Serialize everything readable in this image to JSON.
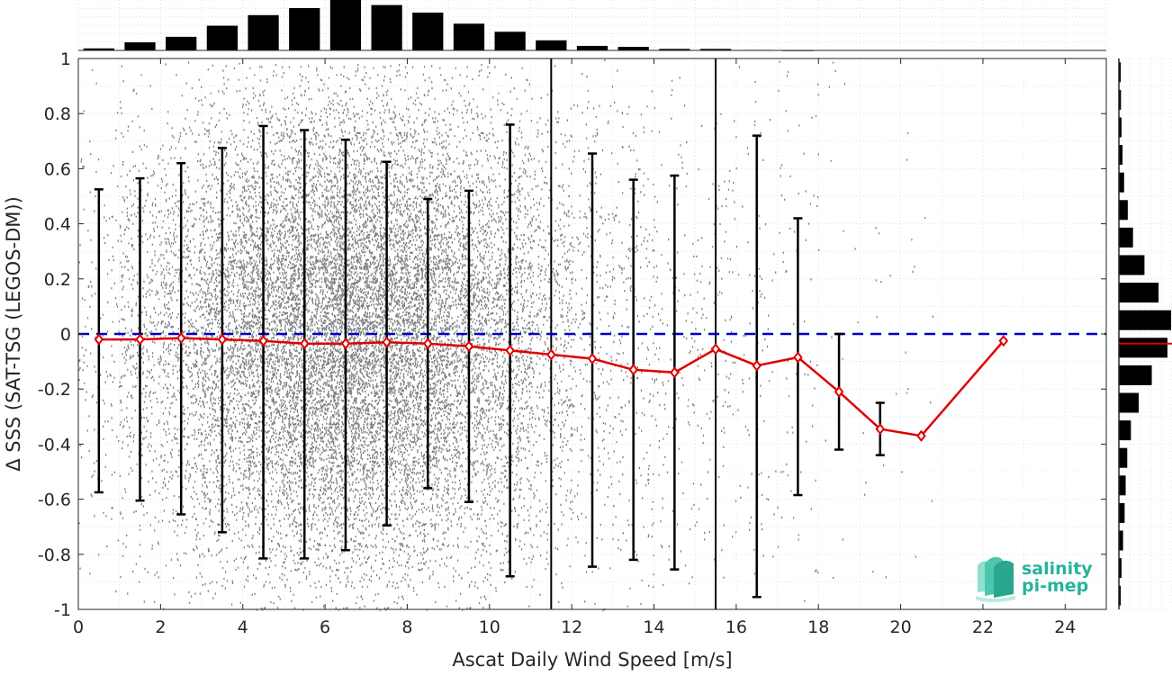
{
  "chart_data": {
    "type": "scatter",
    "xlabel": "Ascat Daily Wind Speed [m/s]",
    "ylabel": "Δ SSS (SAT-TSG (LEGOS-DM))",
    "xlim": [
      0,
      25
    ],
    "ylim": [
      -1,
      1
    ],
    "xticks": [
      "0",
      "2",
      "4",
      "6",
      "8",
      "10",
      "12",
      "14",
      "16",
      "18",
      "20",
      "22",
      "24"
    ],
    "yticks": [
      "-1",
      "-0.8",
      "-0.6",
      "-0.4",
      "-0.2",
      "0",
      "0.2",
      "0.4",
      "0.6",
      "0.8",
      "1"
    ],
    "grid": true,
    "scatter_color": "#808080",
    "mean_color": "#e00000",
    "errorbar_color": "#000000",
    "zero_line_color": "#0000cc",
    "bins": {
      "x": [
        0.5,
        1.5,
        2.5,
        3.5,
        4.5,
        5.5,
        6.5,
        7.5,
        8.5,
        9.5,
        10.5,
        11.5,
        12.5,
        13.5,
        14.5,
        15.5,
        16.5,
        17.5,
        18.5,
        19.5,
        20.5,
        22.5
      ],
      "mean": [
        -0.02,
        -0.02,
        -0.015,
        -0.02,
        -0.025,
        -0.035,
        -0.035,
        -0.03,
        -0.035,
        -0.045,
        -0.06,
        -0.075,
        -0.09,
        -0.13,
        -0.14,
        -0.055,
        -0.115,
        -0.085,
        -0.21,
        -0.345,
        -0.37,
        -0.025
      ],
      "lower": [
        -0.575,
        -0.605,
        -0.655,
        -0.72,
        -0.815,
        -0.815,
        -0.785,
        -0.695,
        -0.56,
        -0.61,
        -0.88,
        null,
        -0.845,
        -0.82,
        -0.855,
        null,
        -0.955,
        -0.585,
        -0.42,
        -0.44,
        null,
        null
      ],
      "upper": [
        0.525,
        0.565,
        0.62,
        0.675,
        0.755,
        0.74,
        0.705,
        0.625,
        0.49,
        0.52,
        0.76,
        null,
        0.655,
        0.56,
        0.575,
        null,
        0.72,
        0.42,
        0.0,
        -0.25,
        null,
        null
      ]
    },
    "vertical_lines_x": [
      11.5,
      15.5
    ],
    "zero_line_y": 0,
    "top_histogram": {
      "x": [
        0.5,
        1.5,
        2.5,
        3.5,
        4.5,
        5.5,
        6.5,
        7.5,
        8.5,
        9.5,
        10.5,
        11.5,
        12.5,
        13.5,
        14.5,
        15.5,
        16.5,
        17.5
      ],
      "counts": [
        0.04,
        0.16,
        0.27,
        0.49,
        0.7,
        0.84,
        1.0,
        0.9,
        0.75,
        0.53,
        0.37,
        0.2,
        0.09,
        0.07,
        0.03,
        0.03,
        0.01,
        0.005
      ]
    },
    "right_histogram": {
      "y": [
        -0.95,
        -0.85,
        -0.75,
        -0.65,
        -0.55,
        -0.45,
        -0.35,
        -0.25,
        -0.15,
        -0.05,
        0.05,
        0.15,
        0.25,
        0.35,
        0.45,
        0.55,
        0.65,
        0.75,
        0.85,
        0.95
      ],
      "counts": [
        0.03,
        0.05,
        0.08,
        0.11,
        0.13,
        0.16,
        0.23,
        0.38,
        0.63,
        0.93,
        1.0,
        0.76,
        0.49,
        0.27,
        0.17,
        0.1,
        0.07,
        0.05,
        0.04,
        0.03
      ],
      "mean_marker_y": -0.035
    }
  },
  "logo": {
    "line1": "salinity",
    "line2": "pi-mep",
    "color": "#27b39a"
  }
}
